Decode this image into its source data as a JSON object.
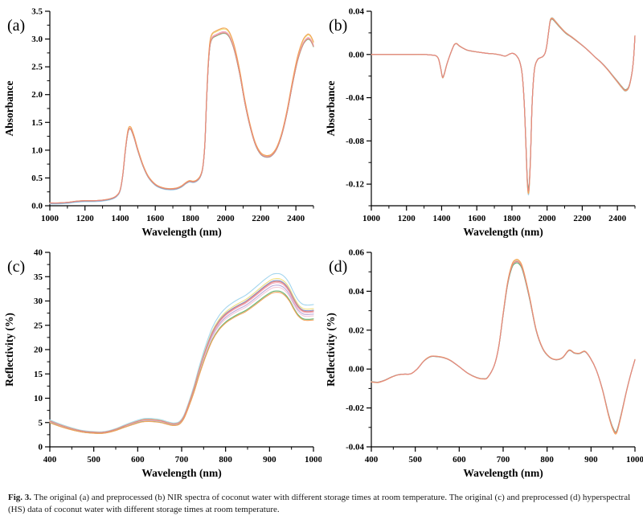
{
  "figure": {
    "caption_label": "Fig. 3.",
    "caption_text": "The original (a) and preprocessed (b) NIR spectra of coconut water with different storage times at room temperature. The original (c) and preprocessed (d) hyperspectral (HS) data of coconut water with different storage times at room temperature."
  },
  "chart_data": [
    {
      "id": "a",
      "panel_label": "(a)",
      "type": "line",
      "title": "",
      "xlabel": "Wavelength (nm)",
      "ylabel": "Absorbance",
      "legend": "none",
      "grid": false,
      "xlim": [
        1000,
        2500
      ],
      "ylim": [
        0,
        3.5
      ],
      "xticks": {
        "values": [
          1000,
          1200,
          1400,
          1600,
          1800,
          2000,
          2200,
          2400
        ],
        "labels": [
          "1000",
          "1200",
          "1400",
          "1600",
          "1800",
          "2000",
          "2200",
          "2400"
        ]
      },
      "xminor": [
        1100,
        1300,
        1500,
        1700,
        1900,
        2100,
        2300,
        2500
      ],
      "yticks": {
        "values": [
          0,
          0.5,
          1,
          1.5,
          2,
          2.5,
          3,
          3.5
        ],
        "labels": [
          "0.0",
          "0.5",
          "1.0",
          "1.5",
          "2.0",
          "2.5",
          "3.0",
          "3.5"
        ]
      },
      "yminor": [
        0.25,
        0.75,
        1.25,
        1.75,
        2.25,
        2.75,
        3.25
      ],
      "x": [
        1000,
        1050,
        1100,
        1150,
        1200,
        1250,
        1300,
        1350,
        1380,
        1400,
        1415,
        1430,
        1445,
        1460,
        1480,
        1500,
        1530,
        1560,
        1600,
        1640,
        1680,
        1720,
        1750,
        1775,
        1795,
        1815,
        1835,
        1855,
        1870,
        1882,
        1892,
        1902,
        1912,
        1925,
        1945,
        1965,
        1985,
        2005,
        2025,
        2050,
        2080,
        2110,
        2140,
        2170,
        2200,
        2230,
        2260,
        2290,
        2320,
        2350,
        2380,
        2410,
        2440,
        2465,
        2480,
        2492,
        2500
      ],
      "base_curve": [
        0.05,
        0.05,
        0.06,
        0.08,
        0.09,
        0.09,
        0.1,
        0.13,
        0.18,
        0.28,
        0.55,
        1.0,
        1.33,
        1.38,
        1.22,
        1.0,
        0.72,
        0.52,
        0.38,
        0.32,
        0.3,
        0.31,
        0.35,
        0.41,
        0.44,
        0.43,
        0.45,
        0.52,
        0.68,
        1.1,
        1.9,
        2.55,
        2.9,
        3.02,
        3.06,
        3.09,
        3.11,
        3.1,
        3.02,
        2.8,
        2.38,
        1.85,
        1.42,
        1.1,
        0.93,
        0.88,
        0.9,
        1.02,
        1.28,
        1.68,
        2.18,
        2.62,
        2.9,
        3.0,
        2.99,
        2.93,
        2.87
      ],
      "series": [
        {
          "name": "curve-1",
          "color": "#a2d5ee",
          "scale": 1.012,
          "offset": -0.018
        },
        {
          "name": "curve-2",
          "color": "#f0df7e",
          "scale": 1.022,
          "offset": 0
        },
        {
          "name": "curve-3",
          "color": "#8094c8",
          "scale": 1.004,
          "offset": -0.008
        },
        {
          "name": "curve-4",
          "color": "#f0a8bc",
          "scale": 1.007,
          "offset": 0
        },
        {
          "name": "curve-5",
          "color": "#bca8d8",
          "scale": 0.999,
          "offset": 0
        },
        {
          "name": "curve-6",
          "color": "#f4c8d8",
          "scale": 1.002,
          "offset": 0
        },
        {
          "name": "curve-7",
          "color": "#62b576",
          "scale": 0.997,
          "offset": 0
        },
        {
          "name": "curve-8",
          "color": "#f2a258",
          "scale": 1.028,
          "offset": 0
        },
        {
          "name": "curve-9",
          "color": "#e88781",
          "scale": 1.0,
          "offset": 0
        }
      ]
    },
    {
      "id": "b",
      "panel_label": "(b)",
      "type": "line",
      "title": "",
      "xlabel": "Wavelength (nm)",
      "ylabel": "Absorbance",
      "legend": "none",
      "grid": false,
      "xlim": [
        1000,
        2500
      ],
      "ylim": [
        -0.14,
        0.04
      ],
      "xticks": {
        "values": [
          1000,
          1200,
          1400,
          1600,
          1800,
          2000,
          2200,
          2400
        ],
        "labels": [
          "1000",
          "1200",
          "1400",
          "1600",
          "1800",
          "2000",
          "2200",
          "2400"
        ]
      },
      "xminor": [
        1100,
        1300,
        1500,
        1700,
        1900,
        2100,
        2300,
        2500
      ],
      "yticks": {
        "values": [
          0.04,
          0,
          -0.04,
          -0.08,
          -0.12
        ],
        "labels": [
          "0.04",
          "0.00",
          "-0.04",
          "-0.08",
          "-0.12"
        ]
      },
      "yminor": [
        0.02,
        -0.02,
        -0.06,
        -0.1,
        -0.14
      ],
      "x": [
        1000,
        1060,
        1120,
        1180,
        1240,
        1300,
        1340,
        1365,
        1382,
        1395,
        1405,
        1415,
        1428,
        1442,
        1458,
        1472,
        1485,
        1500,
        1520,
        1545,
        1575,
        1615,
        1660,
        1700,
        1735,
        1762,
        1788,
        1806,
        1825,
        1843,
        1858,
        1870,
        1880,
        1888,
        1896,
        1905,
        1915,
        1928,
        1945,
        1962,
        1975,
        1988,
        1998,
        2008,
        2018,
        2030,
        2048,
        2075,
        2105,
        2140,
        2180,
        2225,
        2270,
        2305,
        2340,
        2375,
        2405,
        2425,
        2445,
        2465,
        2482,
        2492,
        2500
      ],
      "base_curve": [
        0,
        0,
        0,
        0,
        0,
        0,
        -0.0005,
        -0.001,
        -0.004,
        -0.013,
        -0.021,
        -0.018,
        -0.01,
        -0.003,
        0.004,
        0.009,
        0.01,
        0.008,
        0.006,
        0.004,
        0.003,
        0.002,
        0.001,
        0.0005,
        -0.0005,
        -0.0015,
        0.0005,
        0.001,
        -0.001,
        -0.006,
        -0.018,
        -0.045,
        -0.085,
        -0.118,
        -0.125,
        -0.098,
        -0.045,
        -0.014,
        -0.005,
        -0.003,
        -0.002,
        0.001,
        0.008,
        0.02,
        0.031,
        0.033,
        0.03,
        0.025,
        0.02,
        0.016,
        0.011,
        0.005,
        -0.002,
        -0.007,
        -0.013,
        -0.02,
        -0.026,
        -0.03,
        -0.033,
        -0.03,
        -0.018,
        -0.004,
        0.017
      ],
      "series": [
        {
          "name": "curve-1",
          "color": "#a2d5ee",
          "scale": 1.03,
          "offset": 0
        },
        {
          "name": "curve-2",
          "color": "#f0df7e",
          "scale": 1.015,
          "offset": 0
        },
        {
          "name": "curve-3",
          "color": "#8094c8",
          "scale": 1.008,
          "offset": 0
        },
        {
          "name": "curve-4",
          "color": "#f0a8bc",
          "scale": 1.0,
          "offset": 0
        },
        {
          "name": "curve-5",
          "color": "#bca8d8",
          "scale": 0.994,
          "offset": 0
        },
        {
          "name": "curve-6",
          "color": "#f4c8d8",
          "scale": 1.003,
          "offset": 0
        },
        {
          "name": "curve-7",
          "color": "#62b576",
          "scale": 0.986,
          "offset": 0
        },
        {
          "name": "curve-8",
          "color": "#f2a258",
          "scale": 1.02,
          "offset": 0
        },
        {
          "name": "curve-9",
          "color": "#e88781",
          "scale": 1.0,
          "offset": 0
        }
      ]
    },
    {
      "id": "c",
      "panel_label": "(c)",
      "type": "line",
      "title": "",
      "xlabel": "Wavelength (nm)",
      "ylabel": "Reflectivity (%)",
      "legend": "none",
      "grid": false,
      "xlim": [
        400,
        1000
      ],
      "ylim": [
        0,
        40
      ],
      "xticks": {
        "values": [
          400,
          500,
          600,
          700,
          800,
          900,
          1000
        ],
        "labels": [
          "400",
          "500",
          "600",
          "700",
          "800",
          "900",
          "1000"
        ]
      },
      "xminor": [
        450,
        550,
        650,
        750,
        850,
        950
      ],
      "yticks": {
        "values": [
          0,
          5,
          10,
          15,
          20,
          25,
          30,
          35,
          40
        ],
        "labels": [
          "0",
          "5",
          "10",
          "15",
          "20",
          "25",
          "30",
          "35",
          "40"
        ]
      },
      "yminor": [
        2.5,
        7.5,
        12.5,
        17.5,
        22.5,
        27.5,
        32.5,
        37.5
      ],
      "x": [
        400,
        420,
        440,
        460,
        480,
        500,
        515,
        530,
        550,
        570,
        590,
        610,
        625,
        640,
        655,
        670,
        683,
        695,
        705,
        715,
        728,
        740,
        755,
        770,
        785,
        800,
        815,
        830,
        845,
        860,
        875,
        890,
        905,
        915,
        925,
        935,
        945,
        955,
        965,
        975,
        985,
        1000
      ],
      "base_curve": [
        5.3,
        4.6,
        4.0,
        3.5,
        3.15,
        3.0,
        2.95,
        3.1,
        3.6,
        4.3,
        4.95,
        5.5,
        5.6,
        5.5,
        5.3,
        4.9,
        4.7,
        5.0,
        6.2,
        8.5,
        12.0,
        15.8,
        20.0,
        23.5,
        25.8,
        27.3,
        28.3,
        29.1,
        29.8,
        30.8,
        31.9,
        33.0,
        33.9,
        34.1,
        34.0,
        33.4,
        32.2,
        30.4,
        28.9,
        28.1,
        27.9,
        28.0
      ],
      "series": [
        {
          "name": "curve-1",
          "color": "#a2d5ee",
          "scale": 1.045,
          "offset": 0
        },
        {
          "name": "curve-2",
          "color": "#f0df7e",
          "scale": 1.015,
          "offset": 0
        },
        {
          "name": "curve-3",
          "color": "#8094c8",
          "scale": 1.003,
          "offset": 0
        },
        {
          "name": "curve-4",
          "color": "#f0a8bc",
          "scale": 0.99,
          "offset": 0
        },
        {
          "name": "curve-5",
          "color": "#bca8d8",
          "scale": 0.975,
          "offset": 0
        },
        {
          "name": "curve-6",
          "color": "#f4c8d8",
          "scale": 0.962,
          "offset": 0
        },
        {
          "name": "curve-7",
          "color": "#62b576",
          "scale": 0.94,
          "offset": 0
        },
        {
          "name": "curve-8",
          "color": "#f2a258",
          "scale": 0.932,
          "offset": 0
        },
        {
          "name": "curve-9",
          "color": "#e88781",
          "scale": 0.997,
          "offset": 0
        }
      ]
    },
    {
      "id": "d",
      "panel_label": "(d)",
      "type": "line",
      "title": "",
      "xlabel": "Wavelength (nm)",
      "ylabel": "Reflectivity (%)",
      "legend": "none",
      "grid": false,
      "xlim": [
        400,
        1000
      ],
      "ylim": [
        -0.04,
        0.06
      ],
      "xticks": {
        "values": [
          400,
          500,
          600,
          700,
          800,
          900,
          1000
        ],
        "labels": [
          "400",
          "500",
          "600",
          "700",
          "800",
          "900",
          "1000"
        ]
      },
      "xminor": [
        450,
        550,
        650,
        750,
        850,
        950
      ],
      "yticks": {
        "values": [
          0.06,
          0.04,
          0.02,
          0,
          -0.02,
          -0.04
        ],
        "labels": [
          "0.06",
          "0.04",
          "0.02",
          "0.00",
          "-0.02",
          "-0.04"
        ]
      },
      "yminor": [
        0.05,
        0.03,
        0.01,
        -0.01,
        -0.03
      ],
      "x": [
        400,
        415,
        430,
        445,
        460,
        475,
        490,
        505,
        520,
        535,
        550,
        565,
        580,
        600,
        620,
        640,
        655,
        665,
        680,
        690,
        700,
        710,
        720,
        728,
        736,
        745,
        760,
        775,
        790,
        805,
        820,
        835,
        850,
        862,
        874,
        886,
        898,
        912,
        926,
        940,
        950,
        958,
        968,
        980,
        990,
        1000
      ],
      "base_curve": [
        -0.0065,
        -0.0068,
        -0.0058,
        -0.0042,
        -0.003,
        -0.0026,
        -0.0024,
        0.0002,
        0.0042,
        0.0064,
        0.0064,
        0.0058,
        0.0044,
        0.0012,
        -0.0022,
        -0.0044,
        -0.005,
        -0.0042,
        0.002,
        0.0115,
        0.028,
        0.0435,
        0.0525,
        0.0548,
        0.0545,
        0.0505,
        0.0365,
        0.02,
        0.0105,
        0.0062,
        0.0048,
        0.0058,
        0.0096,
        0.0082,
        0.008,
        0.009,
        0.0058,
        -0.0005,
        -0.0105,
        -0.0235,
        -0.0305,
        -0.0322,
        -0.024,
        -0.012,
        -0.003,
        0.0048
      ],
      "series": [
        {
          "name": "curve-1",
          "color": "#a2d5ee",
          "scale": 1.015,
          "offset": 0
        },
        {
          "name": "curve-2",
          "color": "#f0df7e",
          "scale": 1.02,
          "offset": 0
        },
        {
          "name": "curve-3",
          "color": "#8094c8",
          "scale": 1.005,
          "offset": 0
        },
        {
          "name": "curve-4",
          "color": "#f0a8bc",
          "scale": 1.008,
          "offset": 0
        },
        {
          "name": "curve-5",
          "color": "#bca8d8",
          "scale": 0.995,
          "offset": 0
        },
        {
          "name": "curve-6",
          "color": "#f4c8d8",
          "scale": 1.0,
          "offset": 0
        },
        {
          "name": "curve-7",
          "color": "#62b576",
          "scale": 0.992,
          "offset": 0
        },
        {
          "name": "curve-8",
          "color": "#f2a258",
          "scale": 1.025,
          "offset": 0
        },
        {
          "name": "curve-9",
          "color": "#e88781",
          "scale": 1.005,
          "offset": 0
        }
      ]
    }
  ]
}
